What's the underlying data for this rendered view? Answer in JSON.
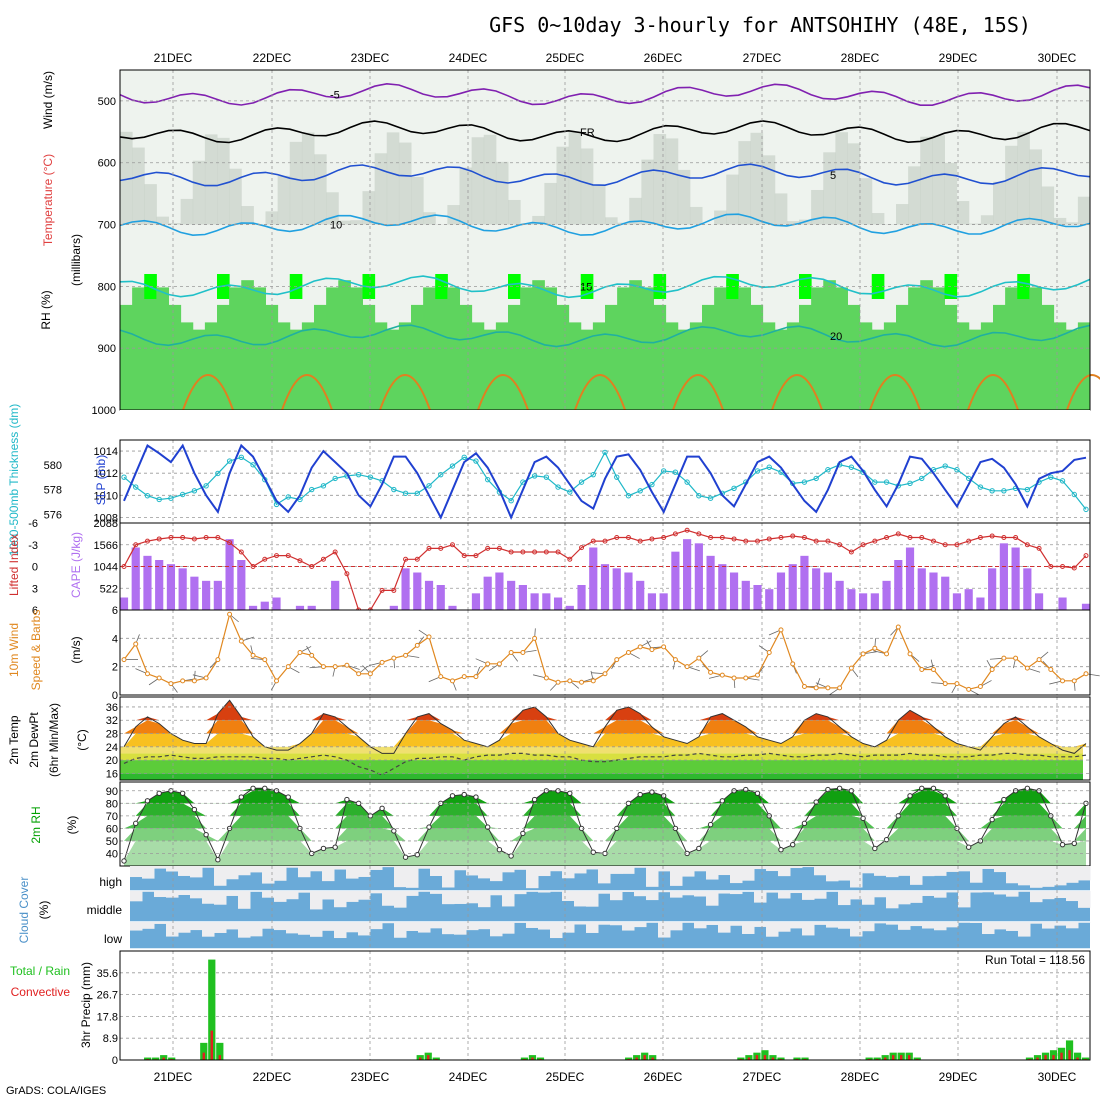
{
  "title": "GFS 0~10day 3-hourly for ANTSOHIHY (48E, 15S)",
  "credit": "GrADS: COLA/IGES",
  "dates": [
    "21DEC",
    "22DEC",
    "23DEC",
    "24DEC",
    "25DEC",
    "26DEC",
    "27DEC",
    "28DEC",
    "29DEC",
    "30DEC"
  ],
  "colors": {
    "rh_green": "#5ed45e",
    "rh_bright": "#00ff00",
    "rh_gray": "#c8d0c8",
    "slp": "#2040d0",
    "thickness": "#20b8c8",
    "cape": "#b070f0",
    "lifted": "#d03030",
    "wind": "#e08820",
    "temp_dark": "#a02000",
    "rh2m": "#00a000",
    "cloud": "#6aaad8",
    "precip_total": "#20c020",
    "precip_conv": "#e02020"
  },
  "panel_labels": {
    "upper_rh": "RH (%)",
    "upper_temp": "Temperature (°C)",
    "upper_wind": "Wind (m/s)",
    "upper_axis": "(millibars)",
    "thick": "1000-500mb Thickness (dm)",
    "slp": "SLP (mb)",
    "lifted": "Lifted Index",
    "cape": "CAPE (J/kg)",
    "wind10": "10m Wind",
    "wind10b": "Speed & Barbs",
    "wind10c": "(m/s)",
    "temp2m": "2m Temp",
    "dew2m": "2m DewPt",
    "minmax": "(6hr Min/Max)",
    "tempunit": "(°C)",
    "rh2m": "2m RH",
    "rh2m_unit": "(%)",
    "cloud": "Cloud Cover",
    "cloud_unit": "(%)",
    "cloud_high": "high",
    "cloud_middle": "middle",
    "cloud_low": "low",
    "precip_total": "Total / Rain",
    "precip_conv": "Convective",
    "precip_axis": "3hr Precip (mm)",
    "run_total": "Run Total = 118.56"
  },
  "chart_data": [
    {
      "type": "heatmap",
      "title": "RH / Temperature / Wind",
      "ylabel": "(millibars)",
      "y_ticks": [
        500,
        600,
        700,
        800,
        900,
        1000
      ],
      "ylim": [
        1000,
        450
      ],
      "isotherms": [
        {
          "label": "-5",
          "level": 490
        },
        {
          "label": "FR",
          "level": 550
        },
        {
          "label": "5",
          "level": 620
        },
        {
          "label": "10",
          "level": 700
        },
        {
          "label": "15",
          "level": 800
        },
        {
          "label": "20",
          "level": 880
        }
      ]
    },
    {
      "type": "line",
      "title": "SLP and Thickness",
      "y_ticks_left": [
        576,
        578,
        580
      ],
      "y_ticks_right": [
        1008,
        1010,
        1012,
        1014
      ],
      "series": [
        {
          "name": "SLP (mb)",
          "axis": "right",
          "ylim": [
            1007.5,
            1015
          ],
          "values": [
            1009.5,
            1012,
            1014.5,
            1013.8,
            1013,
            1014.5,
            1012,
            1010,
            1008.5,
            1012,
            1014.5,
            1013.5,
            1011.5,
            1009.5,
            1008.5,
            1010,
            1012.5,
            1014,
            1013,
            1012,
            1010,
            1009,
            1011,
            1013.5,
            1013.5,
            1012,
            1010,
            1008,
            1010.5,
            1013,
            1013.8,
            1012.5,
            1010.5,
            1008,
            1010.5,
            1013,
            1013.5,
            1012.5,
            1011,
            1009.5,
            1008.8,
            1011.5,
            1013.5,
            1013.7,
            1012.3,
            1010.3,
            1008.5,
            1011,
            1013.5,
            1013.5,
            1012,
            1010,
            1009,
            1011,
            1013,
            1013.5,
            1012.5,
            1011,
            1009.5,
            1008.5,
            1010.5,
            1013,
            1013.5,
            1012.2,
            1010.5,
            1009,
            1011,
            1013.5,
            1013.3,
            1012,
            1010.5,
            1009,
            1011,
            1013,
            1013.3,
            1012.5,
            1011,
            1009,
            1011.5,
            1012,
            1012.2,
            1013.2,
            1013.4
          ]
        },
        {
          "name": "1000-500mb Thickness (dm)",
          "axis": "left",
          "ylim": [
            575.3,
            582
          ],
          "values": [
            579,
            578.2,
            577.5,
            577.2,
            577.3,
            577.6,
            577.9,
            578.3,
            579.3,
            580.3,
            580.6,
            580,
            578.8,
            576.8,
            577.4,
            577.2,
            578,
            578.3,
            578.9,
            579.1,
            579.2,
            579,
            578.7,
            578,
            577.7,
            577.7,
            578.3,
            579.2,
            579.9,
            580.6,
            580.3,
            578.8,
            577.8,
            577.1,
            578.6,
            579.1,
            579,
            578.2,
            577.8,
            578.6,
            579.2,
            581,
            579,
            577.5,
            577.9,
            578.4,
            579.5,
            579.4,
            578.6,
            577.5,
            577.3,
            577.7,
            578.1,
            578.6,
            579.5,
            579.8,
            579.4,
            578.5,
            578.6,
            578.9,
            579.6,
            580,
            579.8,
            579.4,
            578.6,
            578.6,
            578.3,
            578.5,
            578.9,
            579.6,
            579.9,
            579.6,
            578.9,
            578.2,
            577.9,
            577.9,
            578.1,
            578,
            578.6,
            579,
            578.7,
            577.6,
            576.4
          ]
        }
      ]
    },
    {
      "type": "bar",
      "title": "CAPE and Lifted Index",
      "y_ticks_left": [
        -6,
        -3,
        0,
        3,
        6
      ],
      "y_ticks_right": [
        522,
        1044,
        1566,
        2088
      ],
      "series": [
        {
          "name": "CAPE (J/kg)",
          "ylim": [
            0,
            2088
          ],
          "values": [
            300,
            1500,
            1300,
            1200,
            1100,
            1000,
            800,
            700,
            700,
            1700,
            1200,
            100,
            200,
            300,
            0,
            100,
            100,
            0,
            700,
            0,
            0,
            0,
            0,
            100,
            1000,
            900,
            700,
            600,
            100,
            0,
            400,
            800,
            900,
            700,
            600,
            400,
            400,
            300,
            100,
            600,
            1500,
            1100,
            1000,
            900,
            700,
            400,
            400,
            1400,
            1700,
            1600,
            1300,
            1100,
            900,
            700,
            600,
            500,
            900,
            1100,
            1300,
            1000,
            900,
            700,
            500,
            400,
            400,
            700,
            1200,
            1500,
            1000,
            900,
            800,
            400,
            500,
            300,
            1000,
            1600,
            1500,
            1000,
            400,
            0,
            300,
            0,
            150
          ]
        },
        {
          "name": "Lifted Index",
          "ylim": [
            6,
            -6
          ],
          "values": [
            0,
            -3,
            -3.5,
            -3.8,
            -4,
            -4,
            -3.8,
            -4,
            -4,
            -3.3,
            -2,
            0,
            -1,
            -1.5,
            -1.5,
            -0.8,
            0,
            -1,
            -2,
            1,
            6,
            6,
            3.3,
            3.3,
            -1,
            -1,
            -2.5,
            -2.5,
            -3,
            -1.5,
            -1.5,
            -2.5,
            -2.5,
            -2,
            -2,
            -2,
            -2,
            -2,
            -1,
            -2.6,
            -3.5,
            -3.5,
            -4,
            -4,
            -3.5,
            -3.8,
            -4,
            -4.5,
            -5,
            -4.5,
            -4,
            -4,
            -3.8,
            -3.5,
            -3.5,
            -3.8,
            -4,
            -4.2,
            -4,
            -3.5,
            -3.5,
            -3,
            -2,
            -3,
            -3.5,
            -4,
            -4.5,
            -4,
            -4,
            -3.5,
            -3,
            -3,
            -3.5,
            -4,
            -4.2,
            -4,
            -4,
            -3,
            -2.5,
            0,
            0,
            0.2,
            -1.5
          ]
        }
      ]
    },
    {
      "type": "line",
      "title": "10m Wind Speed",
      "ylabel": "(m/s)",
      "y_ticks": [
        0,
        2,
        4,
        6
      ],
      "ylim": [
        0,
        6
      ],
      "values": [
        2.5,
        3.6,
        1.5,
        1.2,
        0.8,
        1,
        1,
        1.2,
        2.5,
        5.7,
        3.8,
        2.8,
        2.5,
        1,
        2,
        3,
        2.8,
        2,
        2,
        2.1,
        1.5,
        1.5,
        2.3,
        2.6,
        2.8,
        3.5,
        4.1,
        1.3,
        1,
        1.3,
        1.3,
        2.2,
        2.2,
        3,
        3,
        4,
        1.2,
        0.9,
        1,
        0.9,
        1,
        1.5,
        2.5,
        3,
        3.4,
        3.2,
        3.4,
        2.5,
        2,
        2.6,
        1.6,
        1.4,
        1.2,
        1.2,
        1.4,
        3,
        4.6,
        2.2,
        0.6,
        0.5,
        0.5,
        0.5,
        1.9,
        2.9,
        3.3,
        2.9,
        4.8,
        2.9,
        1.8,
        1.8,
        0.8,
        0.8,
        0.4,
        0.6,
        1.8,
        2.6,
        2.6,
        1.9,
        2.5,
        1.8,
        1,
        1,
        1.5
      ]
    },
    {
      "type": "area",
      "title": "2m Temp / DewPt",
      "ylabel": "(°C)",
      "y_ticks": [
        16,
        20,
        24,
        28,
        32,
        36
      ],
      "ylim": [
        14,
        39
      ],
      "series": [
        {
          "name": "2m Temp",
          "values": [
            24,
            30,
            33,
            31,
            28,
            26,
            25,
            25,
            34,
            38,
            33,
            27,
            24,
            23,
            23,
            25,
            28,
            34,
            33,
            30,
            27,
            24,
            22,
            22,
            28,
            33,
            34,
            31,
            29,
            26,
            25,
            24,
            26,
            31,
            35,
            36,
            33,
            28,
            26,
            25,
            24,
            30,
            35,
            36,
            34,
            30,
            27,
            26,
            25,
            27,
            33,
            34,
            32,
            30,
            27,
            26,
            25,
            27,
            32,
            34,
            33,
            30,
            27,
            25,
            24,
            26,
            32,
            35,
            33,
            30,
            27,
            25,
            24,
            23,
            27,
            31,
            33,
            30,
            27,
            25,
            23,
            22,
            25
          ]
        },
        {
          "name": "2m DewPt",
          "values": [
            19,
            20.5,
            21,
            21,
            21.5,
            21,
            20.5,
            20.5,
            21,
            21,
            21,
            21,
            20.5,
            20.5,
            20,
            20.5,
            21,
            21.5,
            21,
            20,
            18,
            17,
            15.5,
            17.5,
            19.5,
            20.5,
            20.5,
            21,
            21,
            20,
            21,
            21.5,
            21.5,
            22,
            22,
            21.5,
            21.5,
            21,
            21,
            20,
            19.5,
            19.5,
            20,
            20.5,
            21,
            21,
            21,
            21.5,
            21.5,
            22,
            21.5,
            21,
            21,
            21.5,
            21.5,
            22,
            21.5,
            21,
            21,
            21.5,
            21.5,
            22,
            21.5,
            21,
            21.5,
            21.5,
            21.5,
            22,
            21.5,
            21.5,
            21,
            21,
            21,
            21.5,
            21.5,
            22,
            22,
            21.5,
            21.5,
            21,
            21,
            21,
            21.5
          ]
        }
      ]
    },
    {
      "type": "area",
      "title": "2m RH",
      "ylabel": "(%)",
      "y_ticks": [
        40,
        50,
        60,
        70,
        80,
        90
      ],
      "ylim": [
        30,
        97
      ],
      "values": [
        34,
        64,
        82,
        88,
        90,
        88,
        75,
        55,
        35,
        60,
        85,
        92,
        92,
        90,
        85,
        60,
        40,
        44,
        45,
        83,
        80,
        70,
        76,
        58,
        37,
        39,
        61,
        80,
        86,
        87,
        85,
        61,
        43,
        38,
        56,
        83,
        90,
        90,
        88,
        60,
        41,
        40,
        60,
        80,
        87,
        89,
        86,
        60,
        40,
        44,
        63,
        82,
        90,
        91,
        88,
        70,
        43,
        47,
        64,
        81,
        91,
        92,
        90,
        68,
        44,
        51,
        70,
        86,
        92,
        92,
        86,
        60,
        45,
        50,
        67,
        83,
        90,
        92,
        90,
        70,
        47,
        48,
        80
      ]
    },
    {
      "type": "bar",
      "title": "Cloud Cover",
      "ylabel": "(%)",
      "categories": [
        "high",
        "middle",
        "low"
      ]
    },
    {
      "type": "bar",
      "title": "3hr Precip",
      "ylabel": "3hr Precip (mm)",
      "y_ticks": [
        0,
        8.9,
        17.8,
        26.7,
        35.6
      ],
      "ylim": [
        0,
        44.5
      ],
      "annotation": "Run Total = 118.56",
      "series": [
        {
          "name": "Total / Rain",
          "values": [
            0,
            0,
            0,
            1,
            1,
            2,
            1,
            0,
            0,
            0,
            7,
            41,
            7,
            0,
            0,
            0,
            0,
            0,
            0,
            0,
            0,
            0,
            0,
            0,
            0,
            0,
            0,
            0,
            0,
            0,
            0,
            0,
            0,
            0,
            0,
            0,
            0,
            2,
            3,
            1,
            0,
            0,
            0,
            0,
            0,
            0,
            0,
            0,
            0,
            0,
            1,
            2,
            1,
            0,
            0,
            0,
            0,
            0,
            0,
            0,
            0,
            0,
            0,
            1,
            2,
            3,
            2,
            0,
            0,
            0,
            0,
            0,
            0,
            0,
            0,
            0,
            0,
            1,
            2,
            3,
            4,
            2,
            1,
            0,
            1,
            1,
            0,
            0,
            0,
            0,
            0,
            0,
            0,
            1,
            1,
            2,
            3,
            3,
            3,
            1,
            0,
            0,
            0,
            0,
            0,
            0,
            0,
            0,
            0,
            0,
            0,
            0,
            0,
            1,
            2,
            3,
            4,
            5,
            8,
            3,
            1
          ]
        },
        {
          "name": "Convective",
          "values": [
            0,
            0,
            0,
            0.4,
            0.3,
            1,
            0.4,
            0,
            0,
            0,
            3,
            12,
            2,
            0,
            0,
            0,
            0,
            0,
            0,
            0,
            0,
            0,
            0,
            0,
            0,
            0,
            0,
            0,
            0,
            0,
            0,
            0,
            0,
            0,
            0,
            0,
            0,
            1,
            2,
            0.4,
            0,
            0,
            0,
            0,
            0,
            0,
            0,
            0,
            0,
            0,
            0.4,
            1,
            0.4,
            0,
            0,
            0,
            0,
            0,
            0,
            0,
            0,
            0,
            0,
            0.4,
            1,
            2,
            1,
            0,
            0,
            0,
            0,
            0,
            0,
            0,
            0,
            0,
            0,
            0.4,
            1,
            2,
            2,
            1,
            0.4,
            0,
            0.4,
            0.4,
            0,
            0,
            0,
            0,
            0,
            0,
            0,
            0.4,
            0.4,
            1,
            2,
            2,
            2,
            0.4,
            0,
            0,
            0,
            0,
            0,
            0,
            0,
            0,
            0,
            0,
            0,
            0,
            0,
            0.4,
            1,
            2,
            2,
            3,
            4,
            1,
            0.4
          ]
        }
      ]
    }
  ]
}
